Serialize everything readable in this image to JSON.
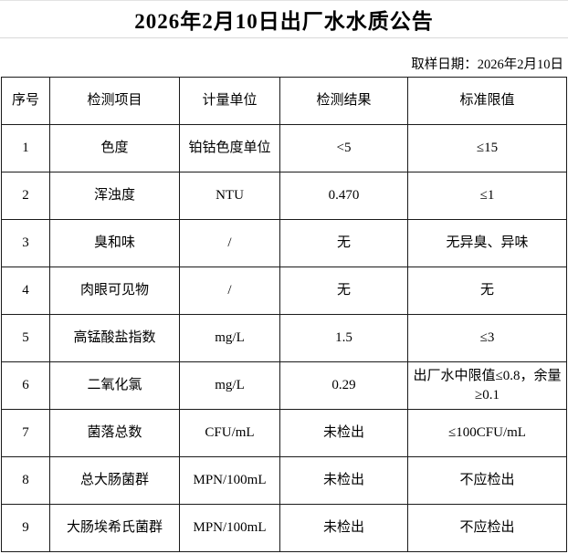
{
  "page": {
    "title": "2026年2月10日出厂水水质公告",
    "sample_date": "取样日期：2026年2月10日"
  },
  "colors": {
    "background": "#ffffff",
    "text": "#000000",
    "table_border": "#1a1a1a",
    "faint_gridline": "#d9d9d9"
  },
  "table": {
    "headers": [
      "序号",
      "检测项目",
      "计量单位",
      "检测结果",
      "标准限值"
    ],
    "rows": [
      [
        "1",
        "色度",
        "铂钴色度单位",
        "<5",
        "≤15"
      ],
      [
        "2",
        "浑浊度",
        "NTU",
        "0.470",
        "≤1"
      ],
      [
        "3",
        "臭和味",
        "/",
        "无",
        "无异臭、异味"
      ],
      [
        "4",
        "肉眼可见物",
        "/",
        "无",
        "无"
      ],
      [
        "5",
        "高锰酸盐指数",
        "mg/L",
        "1.5",
        "≤3"
      ],
      [
        "6",
        "二氧化氯",
        "mg/L",
        "0.29",
        "出厂水中限值≤0.8，余量≥0.1"
      ],
      [
        "7",
        "菌落总数",
        "CFU/mL",
        "未检出",
        "≤100CFU/mL"
      ],
      [
        "8",
        "总大肠菌群",
        "MPN/100mL",
        "未检出",
        "不应检出"
      ],
      [
        "9",
        "大肠埃希氏菌群",
        "MPN/100mL",
        "未检出",
        "不应检出"
      ]
    ]
  }
}
